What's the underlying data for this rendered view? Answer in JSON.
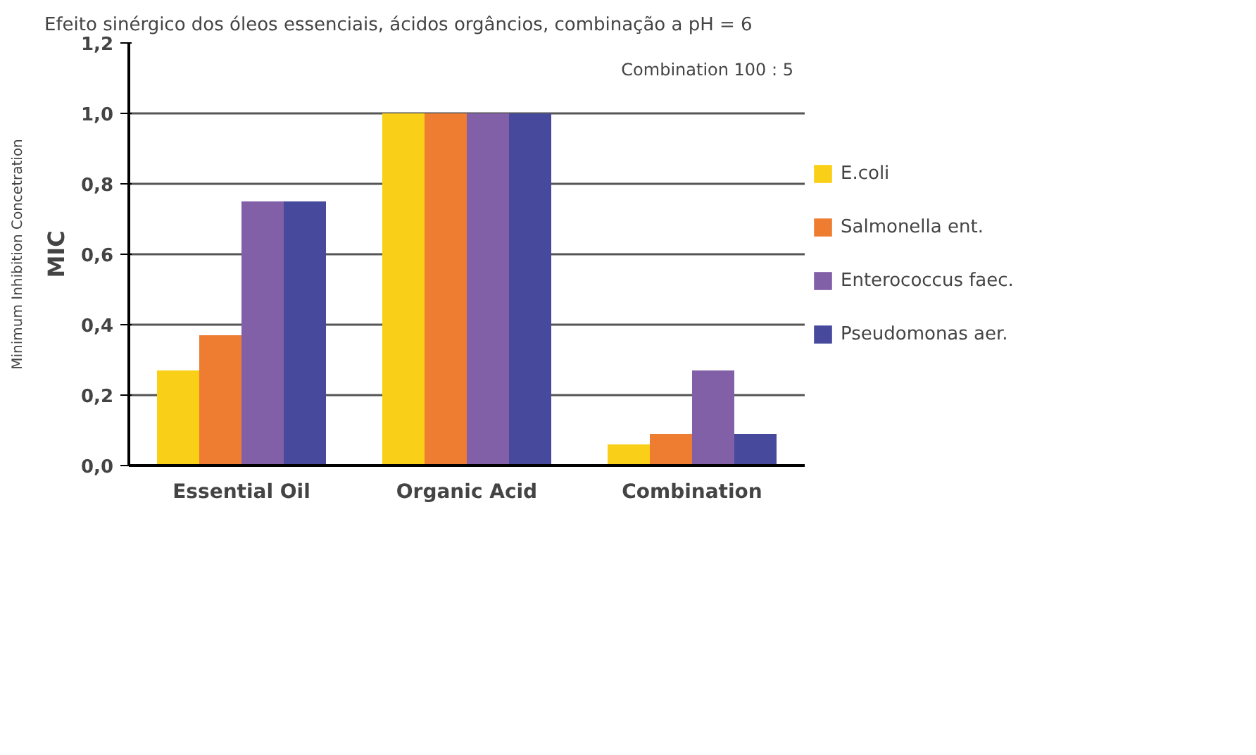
{
  "chart_data": {
    "type": "bar",
    "title": "Efeito sinérgico dos óleos essenciais, ácidos orgâncios, combinação a pH = 6",
    "ylabel": "MIC\nMinimum Inhibition Concetration",
    "categories": [
      "Essential Oil",
      "Organic Acid",
      "Combination"
    ],
    "series": [
      {
        "name": "E.coli",
        "color": "#f9cf17",
        "values": [
          0.27,
          1.0,
          0.06
        ]
      },
      {
        "name": "Salmonella ent.",
        "color": "#ee7d31",
        "values": [
          0.37,
          1.0,
          0.09
        ]
      },
      {
        "name": "Enterococcus faec.",
        "color": "#8160a8",
        "values": [
          0.75,
          1.0,
          0.27
        ]
      },
      {
        "name": "Pseudomonas aer.",
        "color": "#474a9c",
        "values": [
          0.75,
          1.0,
          0.09
        ]
      }
    ],
    "ylim": [
      0,
      1.2
    ],
    "yticks": [
      {
        "value": 0,
        "label": "0,0"
      },
      {
        "value": 0.2,
        "label": "0,2"
      },
      {
        "value": 0.4,
        "label": "0,4"
      },
      {
        "value": 0.6,
        "label": "0,6"
      },
      {
        "value": 0.8,
        "label": "0,8"
      },
      {
        "value": 1.0,
        "label": "1,0"
      },
      {
        "value": 1.2,
        "label": "1,2"
      }
    ],
    "grid": "y",
    "legend": "right",
    "annotations": [
      "Combination 100 : 5"
    ]
  }
}
